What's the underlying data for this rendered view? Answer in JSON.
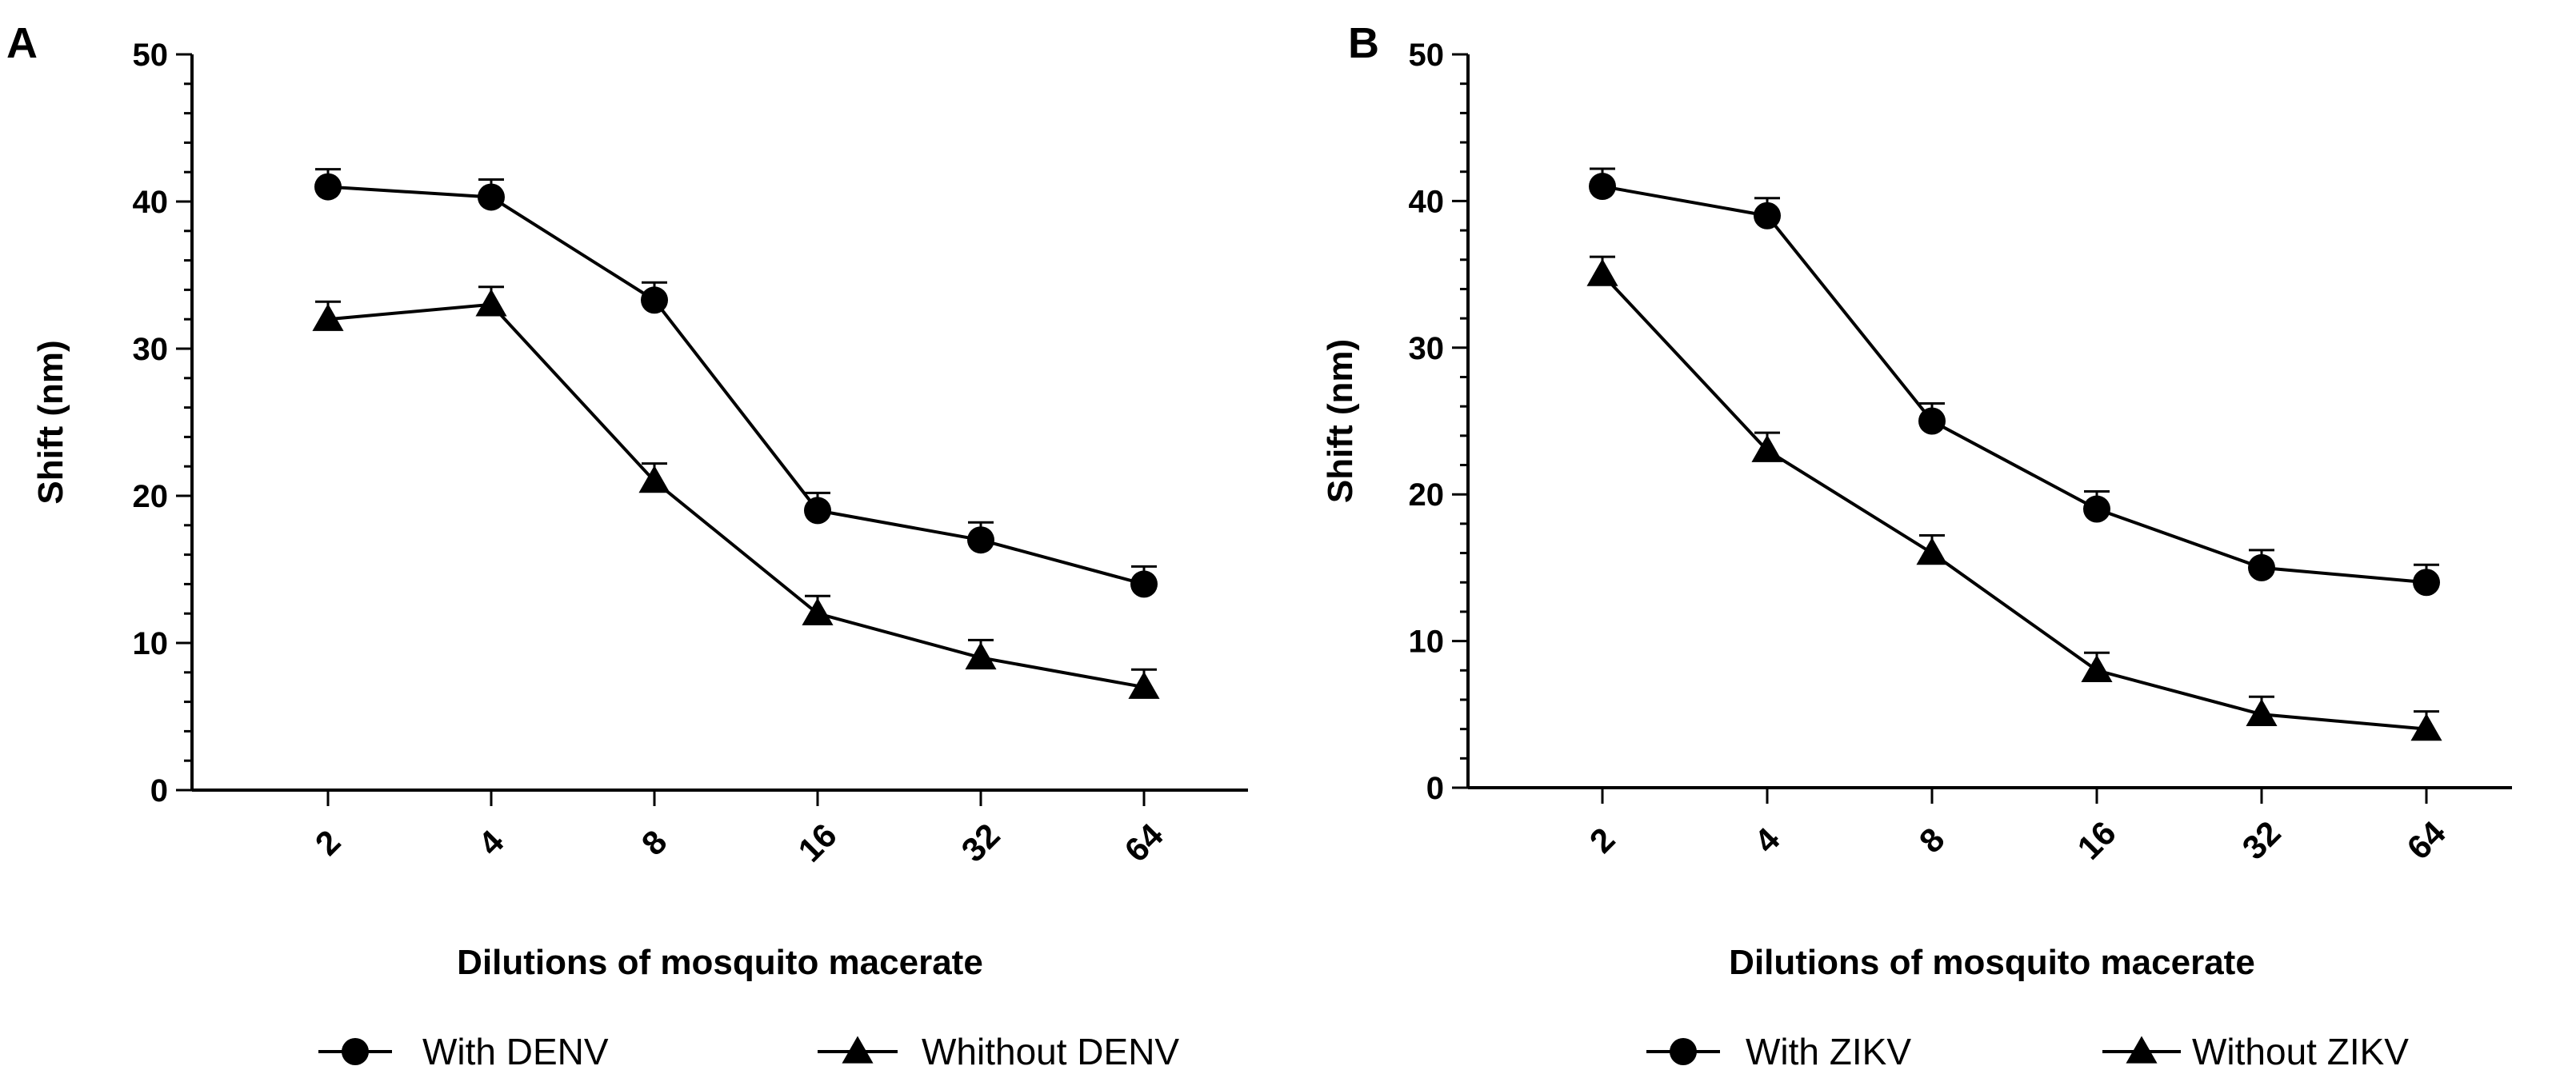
{
  "chart_data": [
    {
      "type": "line",
      "panel_label": "A",
      "title": "",
      "xlabel": "Dilutions of mosquito macerate",
      "ylabel": "Shift (nm)",
      "categories": [
        "2",
        "4",
        "8",
        "16",
        "32",
        "64"
      ],
      "ylim": [
        0,
        50
      ],
      "yticks": [
        "0",
        "10",
        "20",
        "30",
        "40",
        "50"
      ],
      "grid": false,
      "legend_position": "bottom",
      "series": [
        {
          "name": "With DENV",
          "marker": "circle",
          "values": [
            41,
            40.3,
            33.3,
            19,
            17,
            14
          ]
        },
        {
          "name": "Whithout DENV",
          "marker": "triangle",
          "values": [
            32,
            33,
            21,
            12,
            9,
            7
          ]
        }
      ]
    },
    {
      "type": "line",
      "panel_label": "B",
      "title": "",
      "xlabel": "Dilutions of mosquito macerate",
      "ylabel": "Shift (nm)",
      "categories": [
        "2",
        "4",
        "8",
        "16",
        "32",
        "64"
      ],
      "ylim": [
        0,
        50
      ],
      "yticks": [
        "0",
        "10",
        "20",
        "30",
        "40",
        "50"
      ],
      "grid": false,
      "legend_position": "bottom",
      "series": [
        {
          "name": "With ZIKV",
          "marker": "circle",
          "values": [
            41,
            39,
            25,
            19,
            15,
            14
          ]
        },
        {
          "name": "Without ZIKV",
          "marker": "triangle",
          "values": [
            35,
            23,
            16,
            8,
            5,
            4
          ]
        }
      ]
    }
  ]
}
